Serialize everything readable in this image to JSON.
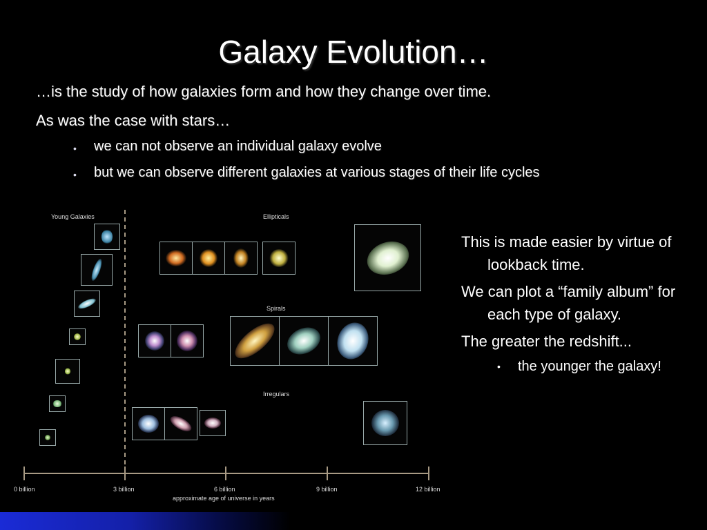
{
  "slide": {
    "title": "Galaxy Evolution…",
    "line1": "…is the study of how galaxies form and how they change over time.",
    "line2": "As was the case with stars…",
    "bullets": [
      "we can not observe an individual galaxy evolve",
      "but we can observe different galaxies at various stages of their life cycles"
    ]
  },
  "side_text": {
    "p1": "This is made easier by virtue of lookback time.",
    "p2": "We can plot a “family album” for each type of galaxy.",
    "p3": "The greater the redshift...",
    "sub": "the younger the galaxy!"
  },
  "diagram": {
    "labels": {
      "young": "Young Galaxies",
      "ellipticals": "Ellipticals",
      "spirals": "Spirals",
      "irregulars": "Irregulars"
    },
    "axis_ticks": [
      "0 billion",
      "3 billion",
      "6 billion",
      "9 billion",
      "12 billion"
    ],
    "axis_label": "approximate age of universe in years"
  }
}
